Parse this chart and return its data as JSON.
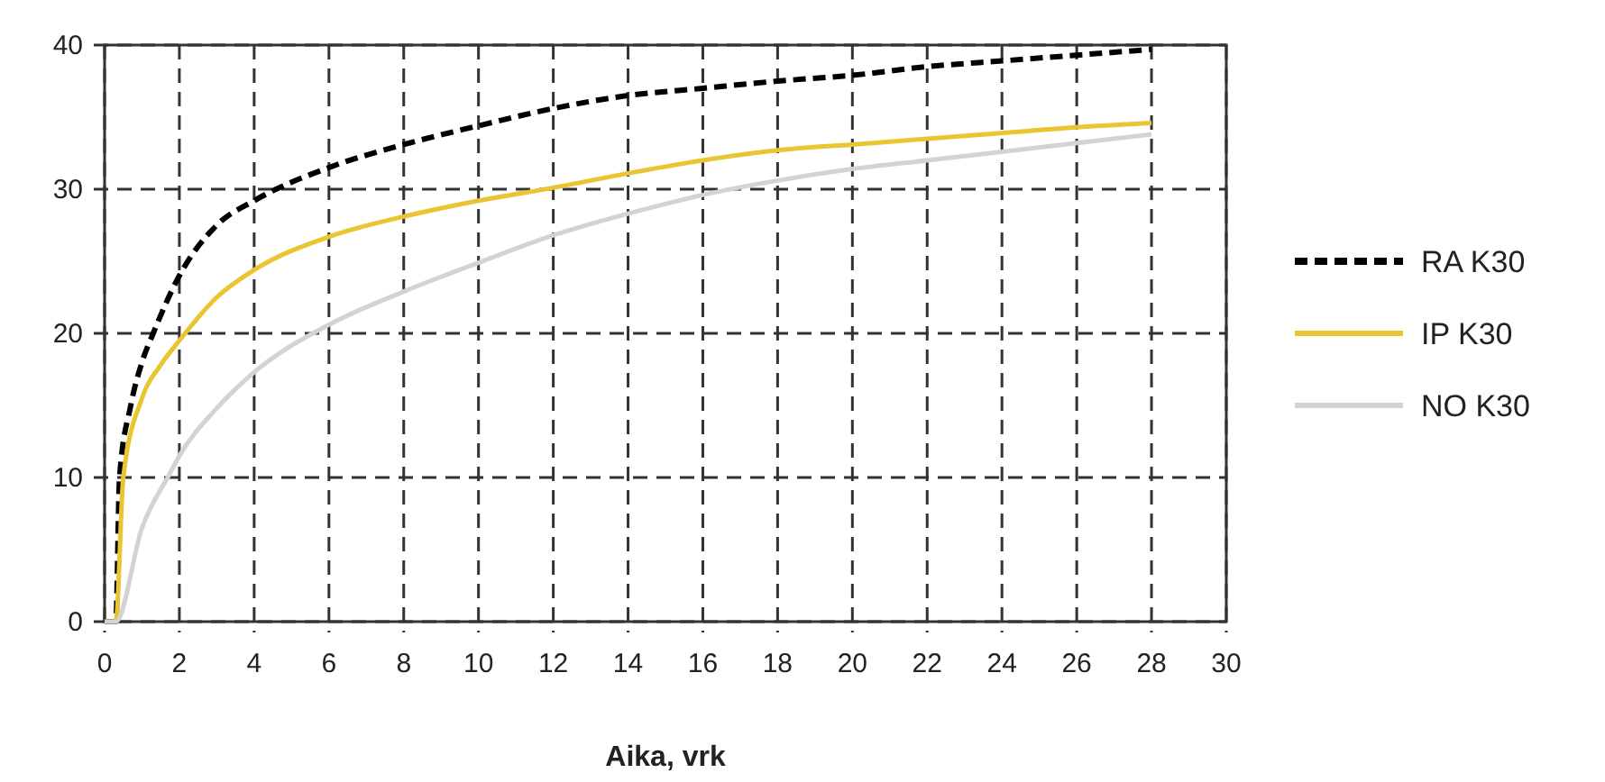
{
  "chart_data": {
    "type": "line",
    "xlabel": "Aika, vrk",
    "xlim": [
      0,
      30
    ],
    "xticks": [
      0,
      2,
      4,
      6,
      8,
      10,
      12,
      14,
      16,
      18,
      20,
      22,
      24,
      26,
      28,
      30
    ],
    "ylim": [
      0,
      40
    ],
    "yticks": [
      0,
      10,
      20,
      30,
      40
    ],
    "grid": true,
    "legend": "right",
    "series": [
      {
        "name": "RA K30",
        "color": "#000000",
        "line_style": "dashed",
        "x": [
          0,
          0.3,
          0.4,
          0.7,
          1,
          1.3,
          2,
          3,
          4,
          6,
          8,
          10,
          12,
          14,
          16,
          18,
          20,
          22,
          24,
          26,
          28
        ],
        "values": [
          0,
          0,
          10,
          15,
          18,
          20,
          24,
          27.5,
          29.2,
          31.5,
          33.1,
          34.4,
          35.6,
          36.5,
          37,
          37.5,
          37.9,
          38.5,
          38.9,
          39.3,
          39.7
        ]
      },
      {
        "name": "IP K30",
        "color": "#e8c531",
        "line_style": "solid",
        "x": [
          0,
          0.3,
          0.5,
          1,
          1.5,
          2,
          3,
          4,
          6,
          8,
          10,
          12,
          14,
          16,
          18,
          20,
          22,
          24,
          26,
          28
        ],
        "values": [
          0,
          0,
          10,
          15.5,
          17.8,
          19.5,
          22.5,
          24.4,
          26.7,
          28.1,
          29.2,
          30.1,
          31.1,
          32,
          32.7,
          33.1,
          33.5,
          33.9,
          34.3,
          34.6
        ]
      },
      {
        "name": "NO K30",
        "color": "#d3d3d3",
        "line_style": "solid",
        "x": [
          0,
          0.3,
          1,
          1.75,
          2,
          3,
          4,
          6,
          8,
          10,
          12,
          14,
          16,
          18,
          20,
          22,
          24,
          26,
          28
        ],
        "values": [
          0,
          0,
          6.5,
          10.3,
          11.5,
          14.8,
          17.3,
          20.6,
          22.9,
          24.9,
          26.8,
          28.3,
          29.6,
          30.6,
          31.4,
          32,
          32.6,
          33.2,
          33.8
        ]
      }
    ]
  }
}
